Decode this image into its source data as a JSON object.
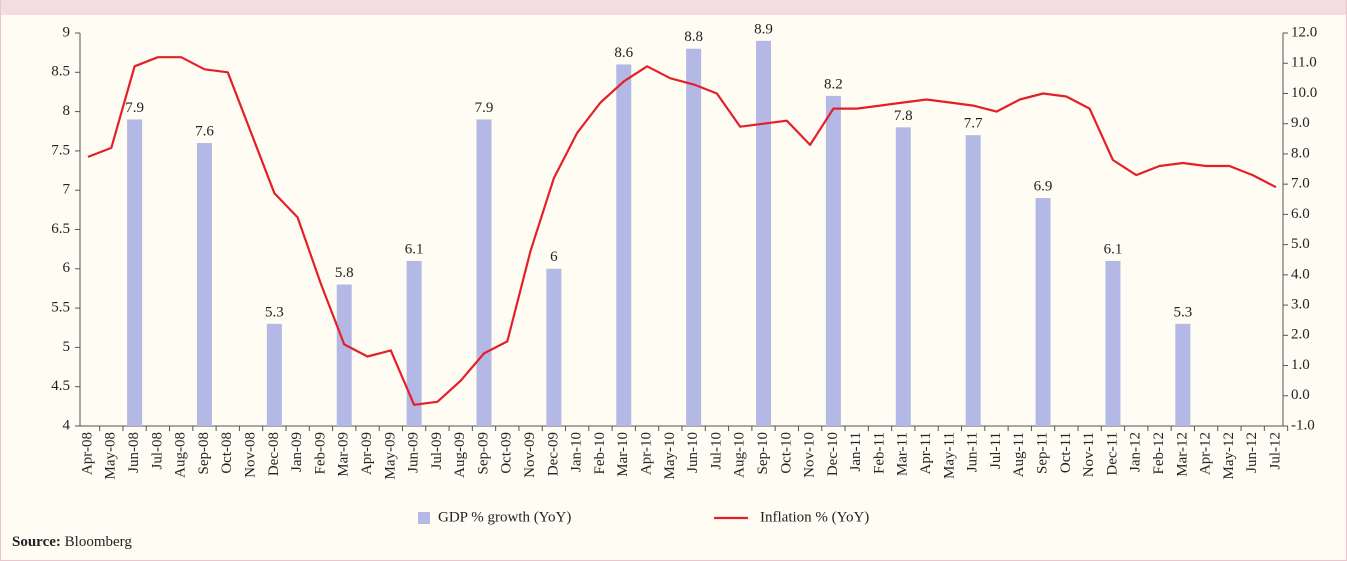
{
  "chart_data": {
    "type": "bar_line",
    "categories": [
      "Apr-08",
      "May-08",
      "Jun-08",
      "Jul-08",
      "Aug-08",
      "Sep-08",
      "Oct-08",
      "Nov-08",
      "Dec-08",
      "Jan-09",
      "Feb-09",
      "Mar-09",
      "Apr-09",
      "May-09",
      "Jun-09",
      "Jul-09",
      "Aug-09",
      "Sep-09",
      "Oct-09",
      "Nov-09",
      "Dec-09",
      "Jan-10",
      "Feb-10",
      "Mar-10",
      "Apr-10",
      "May-10",
      "Jun-10",
      "Jul-10",
      "Aug-10",
      "Sep-10",
      "Oct-10",
      "Nov-10",
      "Dec-10",
      "Jan-11",
      "Feb-11",
      "Mar-11",
      "Apr-11",
      "May-11",
      "Jun-11",
      "Jul-11",
      "Aug-11",
      "Sep-11",
      "Oct-11",
      "Nov-11",
      "Dec-11",
      "Jan-12",
      "Feb-12",
      "Mar-12",
      "Apr-12",
      "May-12",
      "Jun-12",
      "Jul-12"
    ],
    "series": [
      {
        "name": "GDP % growth (YoY)",
        "type": "bar",
        "axis": "y",
        "color": "#b4b8e4",
        "values": [
          null,
          null,
          7.9,
          null,
          null,
          7.6,
          null,
          null,
          5.3,
          null,
          null,
          5.8,
          null,
          null,
          6.1,
          null,
          null,
          7.9,
          null,
          null,
          6,
          null,
          null,
          8.6,
          null,
          null,
          8.8,
          null,
          null,
          8.9,
          null,
          null,
          8.2,
          null,
          null,
          7.8,
          null,
          null,
          7.7,
          null,
          null,
          6.9,
          null,
          null,
          6.1,
          null,
          null,
          5.3,
          null,
          null,
          null,
          null
        ]
      },
      {
        "name": "Inflation % (YoY)",
        "type": "line",
        "axis": "y2",
        "color": "#e3202a",
        "values": [
          7.9,
          8.2,
          10.9,
          11.2,
          11.2,
          10.8,
          10.7,
          8.7,
          6.7,
          5.9,
          3.7,
          1.7,
          1.3,
          1.5,
          -0.3,
          -0.2,
          0.5,
          1.4,
          1.8,
          4.8,
          7.2,
          8.7,
          9.7,
          10.4,
          10.9,
          10.5,
          10.3,
          10.0,
          8.9,
          9.0,
          9.1,
          8.3,
          9.5,
          9.5,
          9.6,
          9.7,
          9.8,
          9.7,
          9.6,
          9.4,
          9.8,
          10.0,
          9.9,
          9.5,
          7.8,
          7.3,
          7.6,
          7.7,
          7.6,
          7.6,
          7.3,
          6.9
        ]
      }
    ],
    "ylim": [
      4,
      9
    ],
    "yticks": [
      4,
      4.5,
      5,
      5.5,
      6,
      6.5,
      7,
      7.5,
      8,
      8.5,
      9
    ],
    "y2lim": [
      -1,
      12
    ],
    "y2ticks": [
      {
        "value": -1,
        "label": "-1.0"
      },
      {
        "value": 0,
        "label": "0.0"
      },
      {
        "value": 1,
        "label": "1.0"
      },
      {
        "value": 2,
        "label": "2.0"
      },
      {
        "value": 3,
        "label": "3.0"
      },
      {
        "value": 4,
        "label": "4.0"
      },
      {
        "value": 5,
        "label": "5.0"
      },
      {
        "value": 6,
        "label": "6.0"
      },
      {
        "value": 7,
        "label": "7.0"
      },
      {
        "value": 8,
        "label": "8.0"
      },
      {
        "value": 9,
        "label": "9.0"
      },
      {
        "value": 10,
        "label": "10.0"
      },
      {
        "value": 11,
        "label": "11.0"
      },
      {
        "value": 12,
        "label": "12.0"
      }
    ],
    "legend": "bottom",
    "source_label": "Source:",
    "source": "Bloomberg"
  }
}
